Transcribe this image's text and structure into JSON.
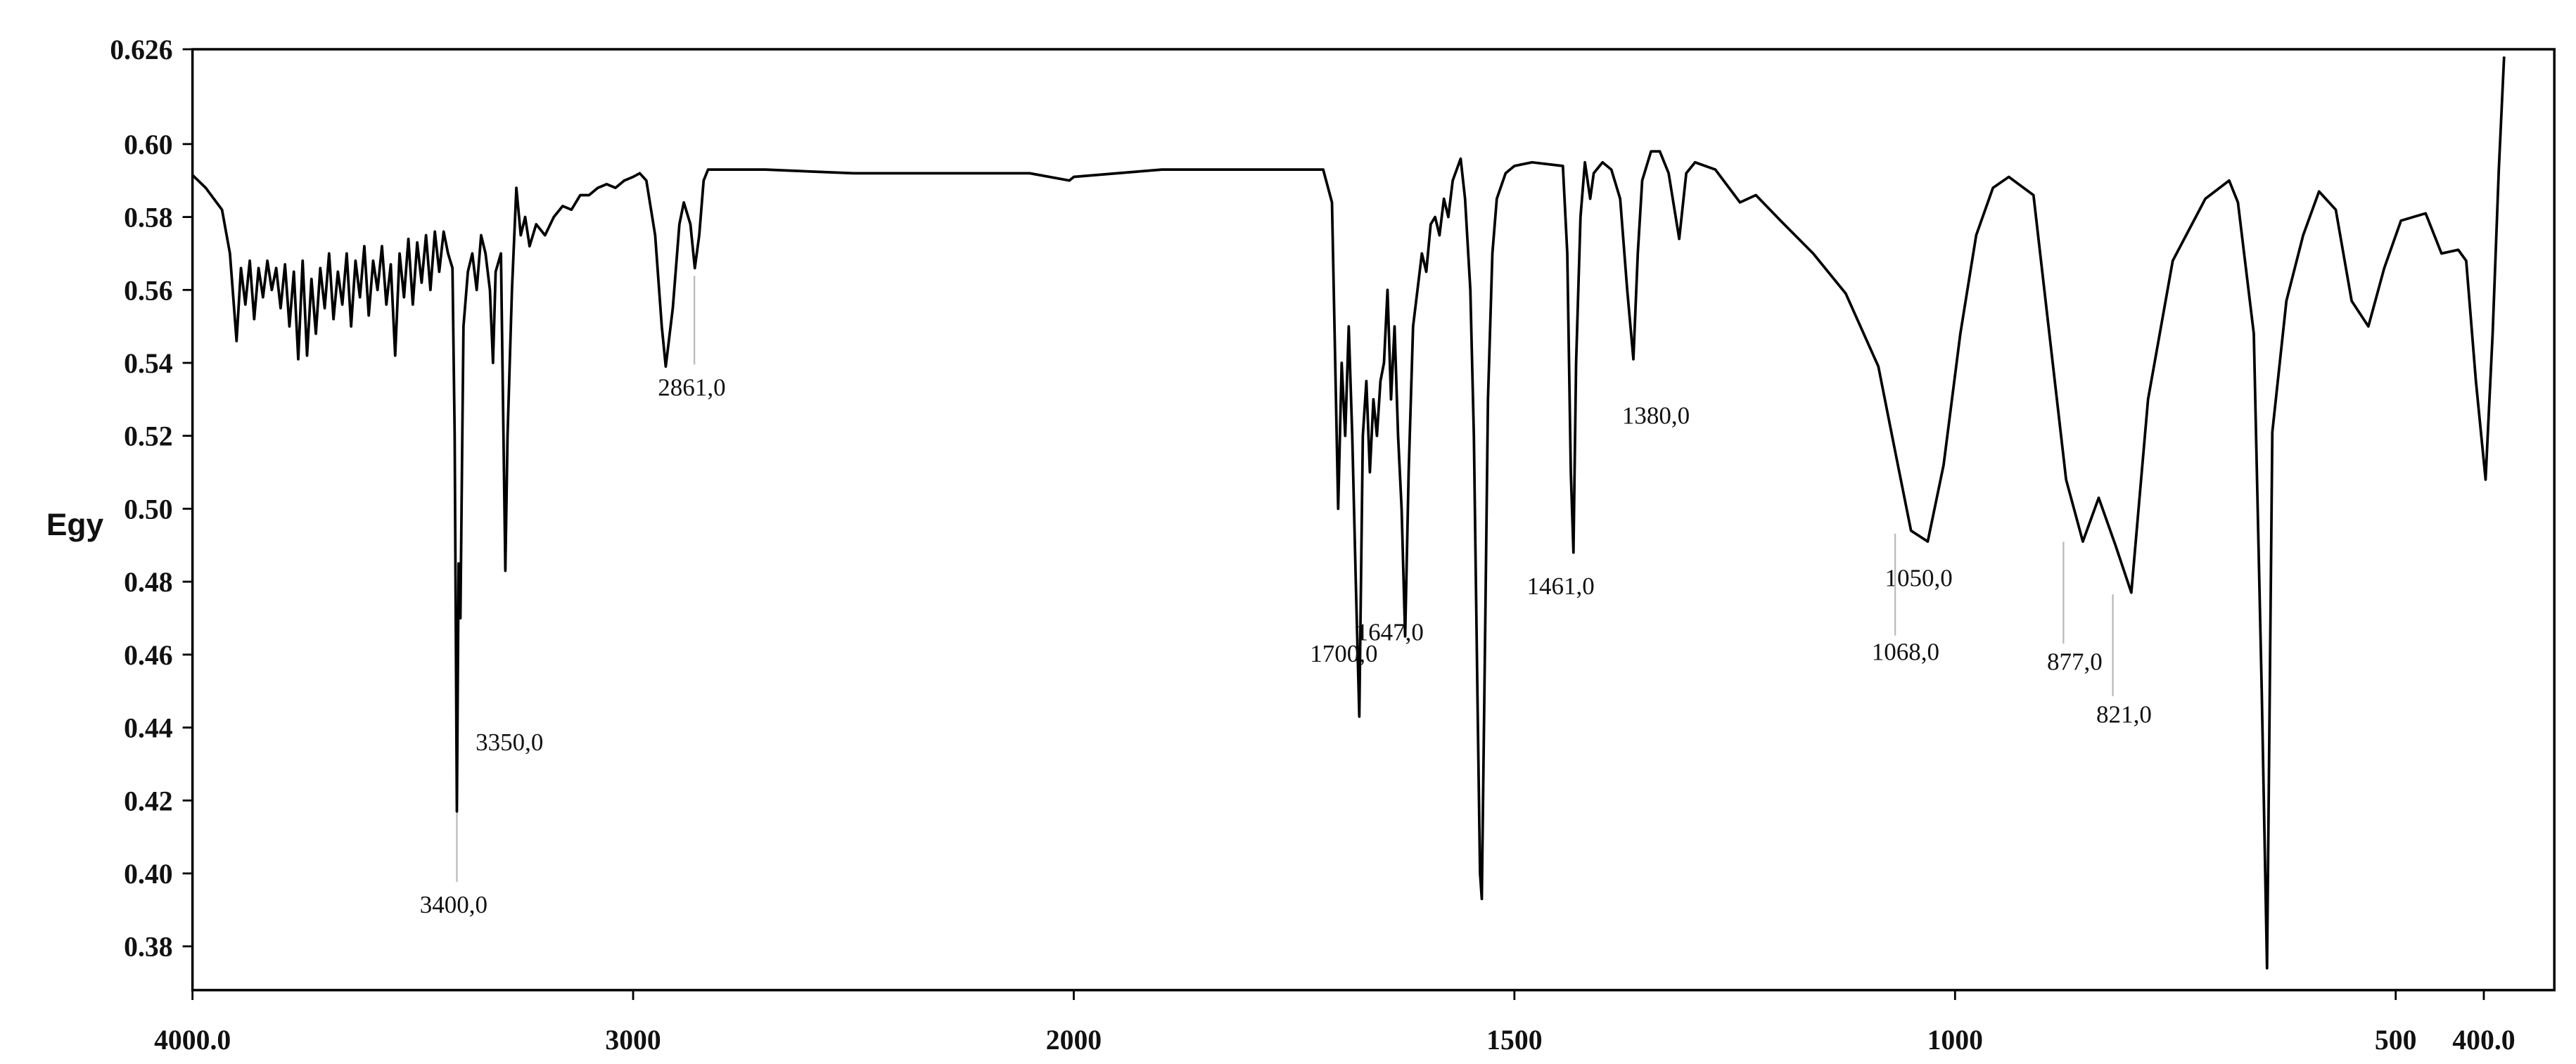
{
  "chart_data": {
    "type": "line",
    "y_label": "Egy",
    "color": "#000000",
    "x_break": 2000,
    "xlim": [
      4000,
      320
    ],
    "ylim": [
      0.368,
      0.626
    ],
    "xticks": [
      {
        "value": 4000,
        "label": "4000.0"
      },
      3000,
      2000,
      1500,
      1000,
      500,
      {
        "value": 400,
        "label": "400.0"
      }
    ],
    "yticks": [
      0.38,
      {
        "value": 0.4,
        "label": "0.40"
      },
      0.42,
      0.44,
      0.46,
      0.48,
      {
        "value": 0.5,
        "label": "0.50"
      },
      0.52,
      0.54,
      0.56,
      0.58,
      {
        "value": 0.6,
        "label": "0.60"
      },
      0.626
    ],
    "x": [
      4000,
      3970,
      3933,
      3915,
      3910,
      3900,
      3890,
      3880,
      3870,
      3860,
      3850,
      3840,
      3830,
      3820,
      3810,
      3800,
      3790,
      3780,
      3770,
      3760,
      3750,
      3740,
      3730,
      3720,
      3710,
      3700,
      3690,
      3680,
      3670,
      3660,
      3650,
      3640,
      3630,
      3620,
      3610,
      3600,
      3590,
      3580,
      3570,
      3560,
      3550,
      3540,
      3530,
      3520,
      3510,
      3500,
      3490,
      3480,
      3470,
      3460,
      3450,
      3440,
      3430,
      3420,
      3410,
      3405,
      3400,
      3396,
      3392,
      3385,
      3375,
      3365,
      3355,
      3345,
      3335,
      3325,
      3318,
      3312,
      3300,
      3290,
      3285,
      3275,
      3265,
      3255,
      3245,
      3235,
      3220,
      3200,
      3180,
      3160,
      3140,
      3120,
      3100,
      3080,
      3060,
      3040,
      3020,
      3000,
      2985,
      2970,
      2950,
      2935,
      2926,
      2910,
      2895,
      2885,
      2870,
      2860,
      2850,
      2840,
      2830,
      2700,
      2500,
      2300,
      2100,
      2010,
      2000,
      1900,
      1800,
      1717,
      1707,
      1700,
      1696,
      1692,
      1688,
      1684,
      1680,
      1676,
      1672,
      1668,
      1664,
      1660,
      1656,
      1652,
      1648,
      1644,
      1640,
      1636,
      1632,
      1628,
      1624,
      1620,
      1615,
      1610,
      1605,
      1600,
      1595,
      1590,
      1585,
      1580,
      1575,
      1570,
      1561,
      1556,
      1550,
      1546,
      1542,
      1539,
      1537,
      1533,
      1530,
      1525,
      1520,
      1510,
      1500,
      1480,
      1445,
      1440,
      1436,
      1433,
      1430,
      1425,
      1420,
      1414,
      1410,
      1400,
      1390,
      1380,
      1372,
      1365,
      1360,
      1355,
      1345,
      1335,
      1325,
      1313,
      1305,
      1295,
      1272,
      1244,
      1226,
      1198,
      1161,
      1124,
      1087,
      1069,
      1050,
      1031,
      1013,
      994,
      976,
      957,
      939,
      911,
      893,
      874,
      855,
      837,
      818,
      800,
      781,
      753,
      716,
      689,
      679,
      661,
      652,
      646,
      640,
      624,
      605,
      587,
      568,
      550,
      531,
      513,
      494,
      466,
      448,
      429,
      420,
      409,
      398,
      390,
      383,
      377
    ],
    "values": [
      0.5915,
      0.588,
      0.582,
      0.57,
      0.562,
      0.546,
      0.566,
      0.556,
      0.568,
      0.552,
      0.566,
      0.558,
      0.568,
      0.56,
      0.566,
      0.555,
      0.567,
      0.55,
      0.565,
      0.541,
      0.568,
      0.542,
      0.563,
      0.548,
      0.566,
      0.555,
      0.57,
      0.552,
      0.565,
      0.556,
      0.57,
      0.55,
      0.568,
      0.558,
      0.572,
      0.553,
      0.568,
      0.56,
      0.572,
      0.556,
      0.567,
      0.542,
      0.57,
      0.558,
      0.574,
      0.556,
      0.573,
      0.562,
      0.575,
      0.56,
      0.576,
      0.565,
      0.576,
      0.57,
      0.566,
      0.52,
      0.417,
      0.485,
      0.47,
      0.55,
      0.565,
      0.57,
      0.56,
      0.575,
      0.57,
      0.56,
      0.54,
      0.565,
      0.57,
      0.483,
      0.52,
      0.56,
      0.588,
      0.575,
      0.58,
      0.572,
      0.578,
      0.575,
      0.58,
      0.583,
      0.582,
      0.586,
      0.586,
      0.588,
      0.589,
      0.588,
      0.59,
      0.591,
      0.592,
      0.59,
      0.575,
      0.55,
      0.539,
      0.555,
      0.578,
      0.584,
      0.578,
      0.566,
      0.575,
      0.59,
      0.593,
      0.593,
      0.592,
      0.592,
      0.592,
      0.59,
      0.591,
      0.593,
      0.593,
      0.593,
      0.584,
      0.5,
      0.54,
      0.52,
      0.55,
      0.52,
      0.48,
      0.443,
      0.52,
      0.535,
      0.51,
      0.53,
      0.52,
      0.535,
      0.54,
      0.56,
      0.53,
      0.55,
      0.52,
      0.5,
      0.465,
      0.51,
      0.55,
      0.56,
      0.57,
      0.565,
      0.578,
      0.58,
      0.575,
      0.585,
      0.58,
      0.59,
      0.596,
      0.585,
      0.56,
      0.52,
      0.45,
      0.4,
      0.393,
      0.47,
      0.53,
      0.57,
      0.585,
      0.592,
      0.594,
      0.595,
      0.594,
      0.57,
      0.51,
      0.488,
      0.54,
      0.58,
      0.595,
      0.585,
      0.592,
      0.595,
      0.593,
      0.585,
      0.56,
      0.541,
      0.57,
      0.59,
      0.598,
      0.598,
      0.592,
      0.574,
      0.592,
      0.595,
      0.593,
      0.584,
      0.586,
      0.579,
      0.57,
      0.559,
      0.539,
      0.517,
      0.494,
      0.491,
      0.512,
      0.548,
      0.575,
      0.588,
      0.591,
      0.586,
      0.548,
      0.508,
      0.491,
      0.503,
      0.49,
      0.477,
      0.53,
      0.568,
      0.585,
      0.59,
      0.584,
      0.548,
      0.45,
      0.374,
      0.521,
      0.557,
      0.575,
      0.587,
      0.582,
      0.557,
      0.55,
      0.566,
      0.579,
      0.581,
      0.57,
      0.571,
      0.568,
      0.535,
      0.508,
      0.548,
      0.593,
      0.624
    ],
    "annotations": [
      {
        "x": 3400,
        "label": "3400,0"
      },
      {
        "x": 3350,
        "label": "3350,0"
      },
      {
        "x": 2861,
        "label": "2861,0"
      },
      {
        "x": 1700,
        "label": "1700,0"
      },
      {
        "x": 1647,
        "label": "1647,0"
      },
      {
        "x": 1461,
        "label": "1461,0"
      },
      {
        "x": 1380,
        "label": "1380,0"
      },
      {
        "x": 1050,
        "label": "1050,0"
      },
      {
        "x": 1068,
        "label": "1068,0"
      },
      {
        "x": 877,
        "label": "877,0"
      },
      {
        "x": 821,
        "label": "821,0"
      }
    ]
  }
}
